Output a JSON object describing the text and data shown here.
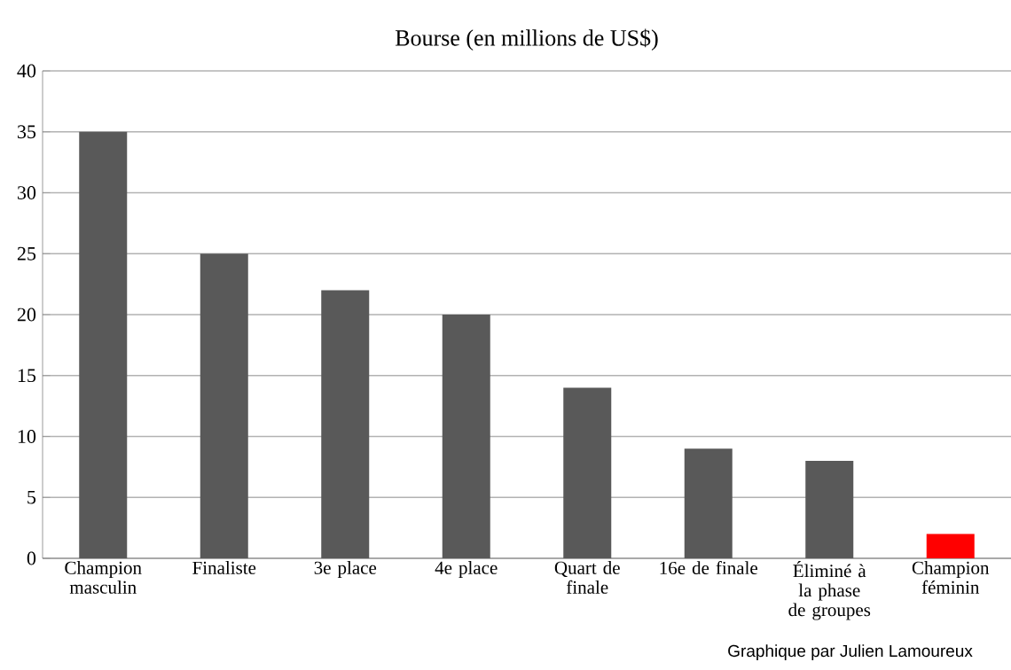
{
  "chart_data": {
    "type": "bar",
    "title": "Bourse (en millions de US$)",
    "categories": [
      "Champion masculin",
      "Finaliste",
      "3e place",
      "4e place",
      "Quart de finale",
      "16e de finale",
      "Éliminé à la phase de groupes",
      "Champion féminin"
    ],
    "values": [
      35,
      25,
      22,
      20,
      14,
      9,
      8,
      2
    ],
    "colors": [
      "#595959",
      "#595959",
      "#595959",
      "#595959",
      "#595959",
      "#595959",
      "#595959",
      "#ff0000"
    ],
    "ylim": [
      0,
      40
    ],
    "yticks": [
      0,
      5,
      10,
      15,
      20,
      25,
      30,
      35,
      40
    ],
    "grid": "y",
    "annotations": [
      "Graphique par Julien Lamoureux"
    ]
  }
}
